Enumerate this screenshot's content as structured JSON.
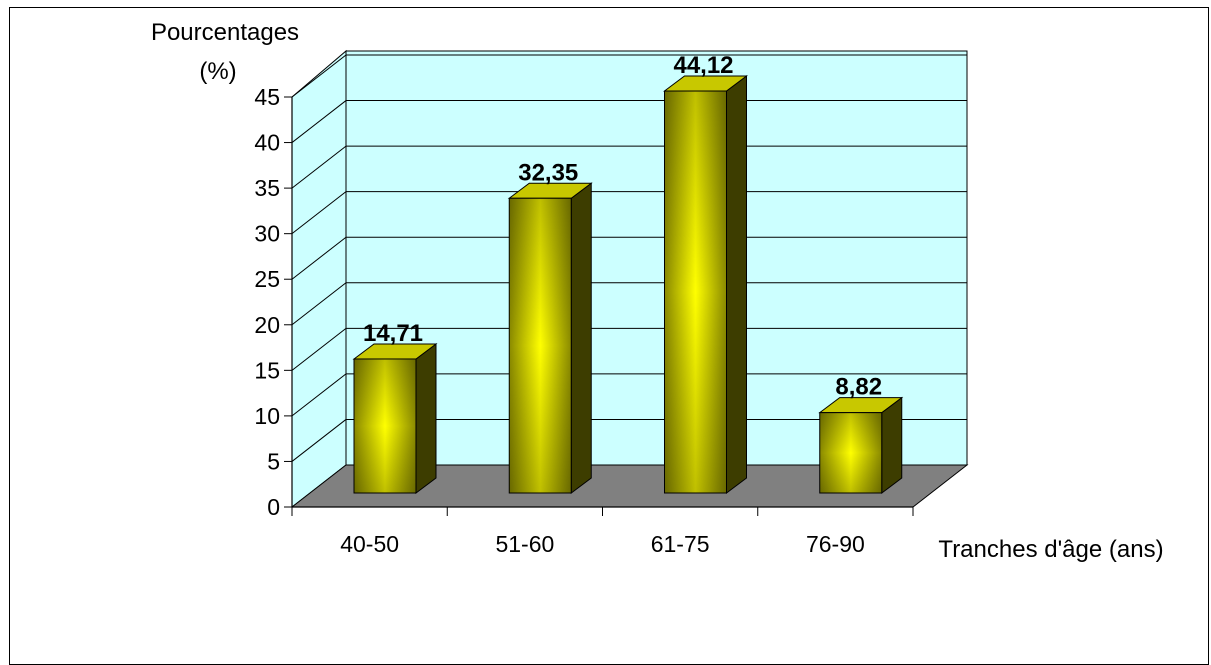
{
  "chart_data": {
    "type": "bar",
    "ylabel_line1": "Pourcentages",
    "ylabel_line2": "(%)",
    "xlabel": "Tranches d'âge (ans)",
    "categories": [
      "40-50",
      "51-60",
      "61-75",
      "76-90"
    ],
    "values": [
      14.71,
      32.35,
      44.12,
      8.82
    ],
    "value_labels": [
      "14,71",
      "32,35",
      "44,12",
      "8,82"
    ],
    "ylim": [
      0,
      45
    ],
    "yticks": [
      "0",
      "5",
      "10",
      "15",
      "20",
      "25",
      "30",
      "35",
      "40",
      "45"
    ],
    "grid": true,
    "three_d": true,
    "legend": "none",
    "colors": {
      "wall": "#ccffff",
      "floor": "#808080",
      "bar_edge": "#8a8a00",
      "bar_center": "#ffff00",
      "bar_side": "#3d3d00",
      "bar_top": "#c8c800"
    }
  }
}
